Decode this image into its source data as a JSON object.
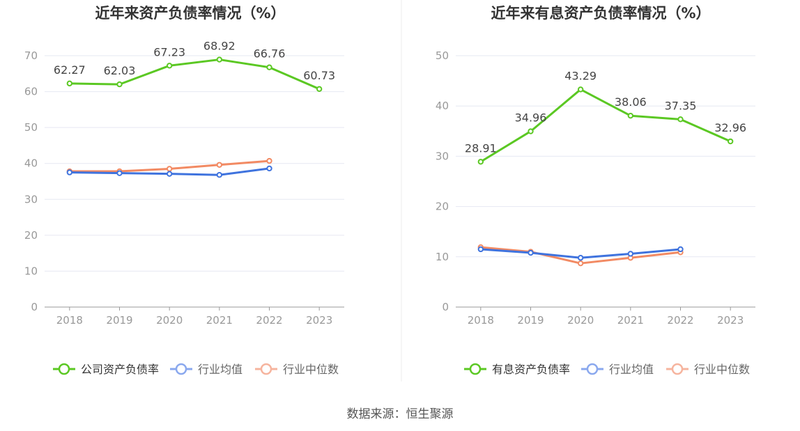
{
  "source_text": "数据来源：恒生聚源",
  "colors": {
    "company": "#5bc823",
    "industry_avg": "#3f73de",
    "industry_median": "#f28a63",
    "legend_avg": "#8aa8ee",
    "legend_median": "#f6b49e",
    "grid": "#e6e8f2",
    "axis": "#999999",
    "tick_text": "#999999",
    "title": "#333333",
    "label_text": "#444444",
    "divider": "#eeeeee"
  },
  "chart_data": [
    {
      "type": "line",
      "title": "近年来资产负债率情况（%）",
      "categories": [
        "2018",
        "2019",
        "2020",
        "2021",
        "2022",
        "2023"
      ],
      "ylim": [
        0,
        70
      ],
      "yticks": [
        0,
        10,
        20,
        30,
        40,
        50,
        60,
        70
      ],
      "grid": true,
      "legend_position": "bottom",
      "series": [
        {
          "name": "公司资产负债率",
          "values": [
            62.27,
            62.03,
            67.23,
            68.92,
            66.76,
            60.73
          ],
          "labels": [
            "62.27",
            "62.03",
            "67.23",
            "68.92",
            "66.76",
            "60.73"
          ]
        },
        {
          "name": "行业均值",
          "values": [
            37.5,
            37.3,
            37.1,
            36.8,
            38.6,
            null
          ]
        },
        {
          "name": "行业中位数",
          "values": [
            37.8,
            37.8,
            38.5,
            39.6,
            40.7,
            null
          ]
        }
      ]
    },
    {
      "type": "line",
      "title": "近年来有息资产负债率情况（%）",
      "categories": [
        "2018",
        "2019",
        "2020",
        "2021",
        "2022",
        "2023"
      ],
      "ylim": [
        0,
        50
      ],
      "yticks": [
        0,
        10,
        20,
        30,
        40,
        50
      ],
      "grid": true,
      "legend_position": "bottom",
      "series": [
        {
          "name": "有息资产负债率",
          "values": [
            28.91,
            34.96,
            43.29,
            38.06,
            37.35,
            32.96
          ],
          "labels": [
            "28.91",
            "34.96",
            "43.29",
            "38.06",
            "37.35",
            "32.96"
          ]
        },
        {
          "name": "行业均值",
          "values": [
            11.5,
            10.8,
            9.8,
            10.6,
            11.5,
            null
          ]
        },
        {
          "name": "行业中位数",
          "values": [
            11.9,
            11.0,
            8.7,
            9.8,
            10.9,
            null
          ]
        }
      ]
    }
  ]
}
